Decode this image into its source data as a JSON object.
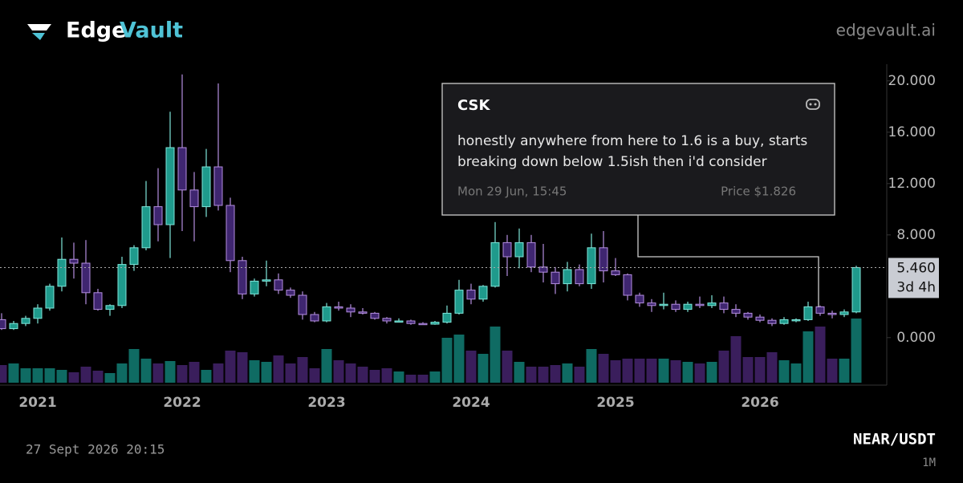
{
  "header": {
    "brand_first": "Edge",
    "brand_second": "Vault",
    "site": "edgevault.ai"
  },
  "chart_data": {
    "type": "candlestick",
    "categories": [
      null,
      null,
      null,
      "2021",
      null,
      null,
      null,
      null,
      null,
      null,
      null,
      null,
      null,
      null,
      null,
      "2022",
      null,
      null,
      null,
      null,
      null,
      null,
      null,
      null,
      null,
      null,
      null,
      "2023",
      null,
      null,
      null,
      null,
      null,
      null,
      null,
      null,
      null,
      null,
      null,
      "2024",
      null,
      null,
      null,
      null,
      null,
      null,
      null,
      null,
      null,
      null,
      null,
      "2025",
      null,
      null,
      null,
      null,
      null,
      null,
      null,
      null,
      null,
      null,
      null,
      "2026",
      null,
      null,
      null,
      null,
      null,
      null,
      null,
      null
    ],
    "open": [
      1.4,
      0.7,
      1.1,
      1.5,
      2.3,
      4.0,
      6.1,
      5.8,
      3.5,
      2.2,
      2.5,
      5.7,
      7.0,
      10.2,
      8.8,
      14.8,
      11.5,
      10.2,
      13.3,
      10.3,
      6.0,
      3.4,
      4.4,
      4.5,
      3.7,
      3.3,
      1.8,
      1.3,
      2.4,
      2.3,
      2.0,
      1.9,
      1.5,
      1.3,
      1.3,
      1.1,
      1.05,
      1.2,
      1.9,
      3.7,
      3.0,
      4.0,
      7.4,
      6.3,
      7.4,
      5.5,
      5.1,
      4.2,
      5.3,
      4.2,
      7.0,
      5.2,
      4.9,
      3.3,
      2.7,
      2.5,
      2.6,
      2.2,
      2.6,
      2.5,
      2.7,
      2.2,
      1.9,
      1.6,
      1.35,
      1.1,
      1.4,
      1.4,
      2.4,
      1.9,
      1.8,
      2.0
    ],
    "high": [
      1.9,
      1.3,
      1.7,
      2.6,
      4.2,
      7.8,
      7.4,
      7.6,
      3.8,
      2.6,
      6.3,
      7.2,
      12.2,
      13.2,
      17.6,
      20.5,
      12.9,
      14.7,
      19.8,
      10.9,
      6.3,
      4.6,
      6.0,
      5.0,
      3.9,
      3.6,
      2.0,
      2.7,
      2.8,
      2.6,
      2.3,
      2.0,
      1.6,
      1.5,
      1.4,
      1.2,
      1.3,
      2.5,
      4.5,
      4.2,
      4.1,
      9.0,
      8.0,
      8.5,
      8.0,
      7.3,
      5.5,
      5.9,
      5.7,
      8.1,
      8.3,
      6.2,
      5.0,
      3.5,
      3.0,
      3.5,
      2.9,
      2.8,
      3.2,
      3.3,
      3.2,
      2.6,
      2.0,
      1.8,
      1.5,
      1.6,
      1.5,
      2.8,
      2.5,
      2.1,
      2.2,
      5.6
    ],
    "low": [
      0.6,
      0.6,
      0.9,
      1.1,
      2.1,
      3.6,
      4.6,
      2.6,
      2.1,
      1.7,
      2.3,
      5.2,
      6.8,
      7.5,
      6.2,
      8.3,
      7.5,
      9.4,
      9.9,
      5.1,
      3.0,
      3.2,
      4.0,
      3.4,
      3.1,
      1.4,
      1.2,
      1.2,
      2.1,
      1.6,
      1.8,
      1.4,
      1.1,
      1.2,
      1.0,
      1.0,
      1.0,
      1.1,
      1.8,
      2.6,
      2.8,
      3.9,
      4.8,
      5.4,
      5.1,
      4.3,
      3.4,
      3.6,
      4.0,
      3.8,
      4.3,
      4.8,
      2.9,
      2.4,
      2.0,
      2.2,
      2.0,
      2.0,
      2.3,
      2.3,
      1.9,
      1.6,
      1.4,
      1.2,
      0.9,
      1.0,
      1.2,
      1.3,
      1.7,
      1.5,
      1.6,
      1.9
    ],
    "close": [
      0.7,
      1.1,
      1.5,
      2.3,
      4.0,
      6.1,
      5.8,
      3.5,
      2.2,
      2.5,
      5.7,
      7.0,
      10.2,
      8.8,
      14.8,
      11.5,
      10.2,
      13.3,
      10.3,
      6.0,
      3.4,
      4.4,
      4.5,
      3.7,
      3.3,
      1.8,
      1.3,
      2.4,
      2.3,
      2.0,
      1.9,
      1.5,
      1.3,
      1.3,
      1.1,
      1.05,
      1.2,
      1.9,
      3.7,
      3.0,
      4.0,
      7.4,
      6.3,
      7.4,
      5.5,
      5.1,
      4.2,
      5.3,
      4.2,
      7.0,
      5.2,
      4.9,
      3.3,
      2.7,
      2.5,
      2.6,
      2.2,
      2.6,
      2.5,
      2.7,
      2.2,
      1.9,
      1.6,
      1.35,
      1.1,
      1.4,
      1.4,
      2.4,
      1.9,
      1.8,
      2.0,
      5.46
    ],
    "volume": [
      22,
      24,
      18,
      18,
      18,
      16,
      13,
      20,
      15,
      12,
      24,
      42,
      30,
      24,
      27,
      22,
      26,
      16,
      24,
      40,
      38,
      28,
      26,
      34,
      24,
      32,
      18,
      42,
      28,
      24,
      20,
      16,
      18,
      14,
      10,
      10,
      14,
      56,
      60,
      40,
      36,
      70,
      40,
      26,
      20,
      20,
      22,
      24,
      20,
      42,
      36,
      28,
      30,
      30,
      30,
      30,
      28,
      26,
      24,
      26,
      40,
      58,
      32,
      32,
      38,
      28,
      24,
      64,
      70,
      30,
      30,
      80
    ],
    "up_color": "#1f9a8c",
    "down_color": "#3f2670",
    "ylim": [
      -3.7,
      21.3
    ],
    "yticks": [
      {
        "value": 0,
        "label": "0.000"
      },
      {
        "value": 8,
        "label": "8.000"
      },
      {
        "value": 12,
        "label": "12.000"
      },
      {
        "value": 16,
        "label": "16.000"
      },
      {
        "value": 20,
        "label": "20.000"
      }
    ],
    "last_price": {
      "value": 5.46,
      "label": "5.460"
    },
    "countdown": "3d 4h",
    "annotation": {
      "author": "CSK",
      "text_line1": "honestly anywhere from here to 1.6 is a buy, starts",
      "text_line2": "breaking down below 1.5ish then i'd consider",
      "time": "Mon 29 Jun, 15:45",
      "price": "Price $1.826"
    },
    "timestamp": "27 Sept 2026 20:15",
    "symbol": "NEAR/USDT",
    "interval": "1M"
  }
}
